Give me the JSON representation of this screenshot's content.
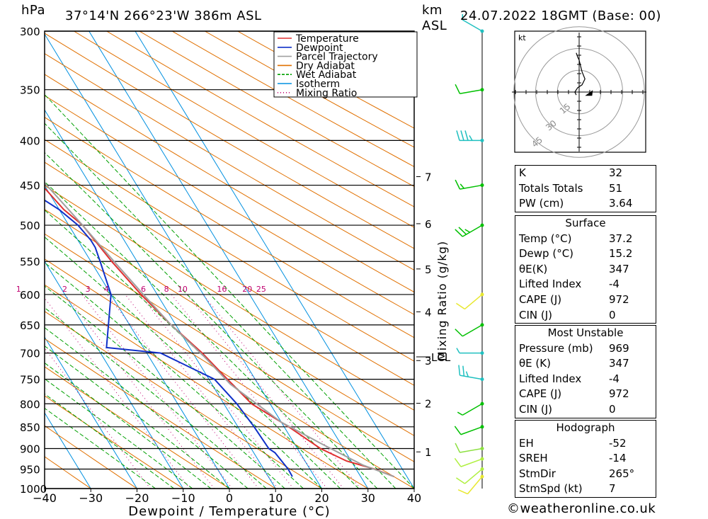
{
  "header": {
    "pressure_unit": "hPa",
    "location": "37°14'N 266°23'W 386m ASL",
    "height_unit_line1": "km",
    "height_unit_line2": "ASL",
    "datetime": "24.07.2022 18GMT (Base: 00)"
  },
  "chart_data": {
    "type": "line",
    "title": "37°14'N 266°23'W 386m ASL",
    "xlabel": "Dewpoint / Temperature (°C)",
    "ylabel": "hPa",
    "secondary_ylabel": "Mixing Ratio (g/kg)",
    "xlim": [
      -40,
      40
    ],
    "ylim": [
      1000,
      300
    ],
    "y_log_scale": true,
    "x_ticks": [
      -40,
      -30,
      -20,
      -10,
      0,
      10,
      20,
      30,
      40
    ],
    "pressure_levels": [
      300,
      350,
      400,
      450,
      500,
      550,
      600,
      650,
      700,
      750,
      800,
      850,
      900,
      950,
      1000
    ],
    "km_ticks": [
      {
        "label": "1",
        "p": 908
      },
      {
        "label": "2",
        "p": 799
      },
      {
        "label": "3",
        "p": 714
      },
      {
        "label": "4",
        "p": 628
      },
      {
        "label": "5",
        "p": 561
      },
      {
        "label": "6",
        "p": 498
      },
      {
        "label": "7",
        "p": 440
      }
    ],
    "lcl": {
      "label": "LCL",
      "p": 707
    },
    "mixing_ratio_labels": [
      "1",
      "2",
      "3",
      "4",
      "6",
      "8",
      "10",
      "16",
      "20",
      "25"
    ],
    "mixing_ratio_label_x": [
      -20,
      -10,
      -5,
      -1,
      7,
      12,
      15.5,
      24,
      29.5,
      32.5
    ],
    "legend": [
      "Temperature",
      "Dewpoint",
      "Parcel Trajectory",
      "Dry Adiabat",
      "Wet Adiabat",
      "Isotherm",
      "Mixing Ratio"
    ],
    "legend_colors": [
      "#e03030",
      "#1030c8",
      "#a0a0a0",
      "#e07000",
      "#00a000",
      "#0090e0",
      "#c00070"
    ],
    "series": [
      {
        "name": "Temperature",
        "color": "#e03030",
        "x": [
          37.2,
          34,
          29,
          25,
          21,
          16,
          14,
          12,
          9,
          6.5,
          4.5,
          3,
          1,
          -0.5,
          -3,
          -5,
          -8
        ],
        "p": [
          969,
          950,
          930,
          900,
          850,
          800,
          750,
          700,
          650,
          600,
          550,
          500,
          480,
          450,
          400,
          350,
          300
        ]
      },
      {
        "name": "Dewpoint",
        "color": "#1030c8",
        "x": [
          15.2,
          15.3,
          14.6,
          13.8,
          13.5,
          12.8,
          11.2,
          3,
          -8,
          0,
          2,
          2.8,
          2.8,
          2,
          0,
          -5,
          -35,
          -53
        ],
        "p": [
          969,
          950,
          910,
          900,
          850,
          800,
          750,
          700,
          690,
          600,
          550,
          530,
          520,
          500,
          480,
          450,
          400,
          300
        ]
      },
      {
        "name": "Parcel Trajectory",
        "color": "#a0a0a0",
        "x": [
          37.2,
          32,
          26,
          20,
          14,
          12,
          9,
          7,
          5,
          3,
          0.5,
          -2,
          -5,
          -7.5
        ],
        "p": [
          969,
          940,
          890,
          840,
          760,
          707,
          650,
          600,
          550,
          500,
          450,
          400,
          350,
          310
        ]
      }
    ],
    "hodograph": {
      "unit": "kt",
      "ring_labels": [
        "15",
        "30",
        "45"
      ],
      "ring_speeds": [
        15,
        30,
        45
      ],
      "trace_u": [
        -2,
        -3,
        -1,
        2,
        4,
        2,
        1,
        0,
        -1,
        -2
      ],
      "trace_v": [
        -2,
        0,
        3,
        5,
        9,
        14,
        18,
        22,
        24,
        27
      ],
      "storm_u": 7,
      "storm_v": 0.6
    },
    "wind_barbs": [
      {
        "p": 969,
        "dir": 220,
        "spd": 10,
        "color": "#e8e830"
      },
      {
        "p": 950,
        "dir": 230,
        "spd": 10,
        "color": "#b0f040"
      },
      {
        "p": 925,
        "dir": 250,
        "spd": 10,
        "color": "#b0f040"
      },
      {
        "p": 900,
        "dir": 260,
        "spd": 10,
        "color": "#8ce040"
      },
      {
        "p": 850,
        "dir": 250,
        "spd": 10,
        "color": "#00c000"
      },
      {
        "p": 800,
        "dir": 240,
        "spd": 5,
        "color": "#00c000"
      },
      {
        "p": 750,
        "dir": 280,
        "spd": 25,
        "color": "#20c0c0"
      },
      {
        "p": 700,
        "dir": 270,
        "spd": 5,
        "color": "#20c0c0"
      },
      {
        "p": 650,
        "dir": 240,
        "spd": 10,
        "color": "#00c000"
      },
      {
        "p": 600,
        "dir": 230,
        "spd": 10,
        "color": "#e8e830"
      },
      {
        "p": 500,
        "dir": 240,
        "spd": 25,
        "color": "#00c000"
      },
      {
        "p": 450,
        "dir": 260,
        "spd": 15,
        "color": "#00c000"
      },
      {
        "p": 400,
        "dir": 270,
        "spd": 35,
        "color": "#20c0c0"
      },
      {
        "p": 350,
        "dir": 260,
        "spd": 10,
        "color": "#00c000"
      },
      {
        "p": 300,
        "dir": 300,
        "spd": 5,
        "color": "#20c0c0"
      }
    ]
  },
  "indices": {
    "rows": [
      {
        "label": "K",
        "value": "32"
      },
      {
        "label": "Totals Totals",
        "value": "51"
      },
      {
        "label": "PW (cm)",
        "value": "3.64"
      }
    ]
  },
  "surface": {
    "title": "Surface",
    "rows": [
      {
        "label": "Temp (°C)",
        "value": "37.2"
      },
      {
        "label": "Dewp (°C)",
        "value": "15.2"
      },
      {
        "label": "θE(K)",
        "value": "347"
      },
      {
        "label": "Lifted Index",
        "value": "-4"
      },
      {
        "label": "CAPE (J)",
        "value": "972"
      },
      {
        "label": "CIN (J)",
        "value": "0"
      }
    ]
  },
  "most_unstable": {
    "title": "Most Unstable",
    "rows": [
      {
        "label": "Pressure (mb)",
        "value": "969"
      },
      {
        "label": "θE (K)",
        "value": "347"
      },
      {
        "label": "Lifted Index",
        "value": "-4"
      },
      {
        "label": "CAPE (J)",
        "value": "972"
      },
      {
        "label": "CIN (J)",
        "value": "0"
      }
    ]
  },
  "hodograph_table": {
    "title": "Hodograph",
    "rows": [
      {
        "label": "EH",
        "value": "-52"
      },
      {
        "label": "SREH",
        "value": "-14"
      },
      {
        "label": "StmDir",
        "value": "265°"
      },
      {
        "label": "StmSpd (kt)",
        "value": "7"
      }
    ]
  },
  "footer": {
    "copyright": "©weatheronline.co.uk"
  }
}
